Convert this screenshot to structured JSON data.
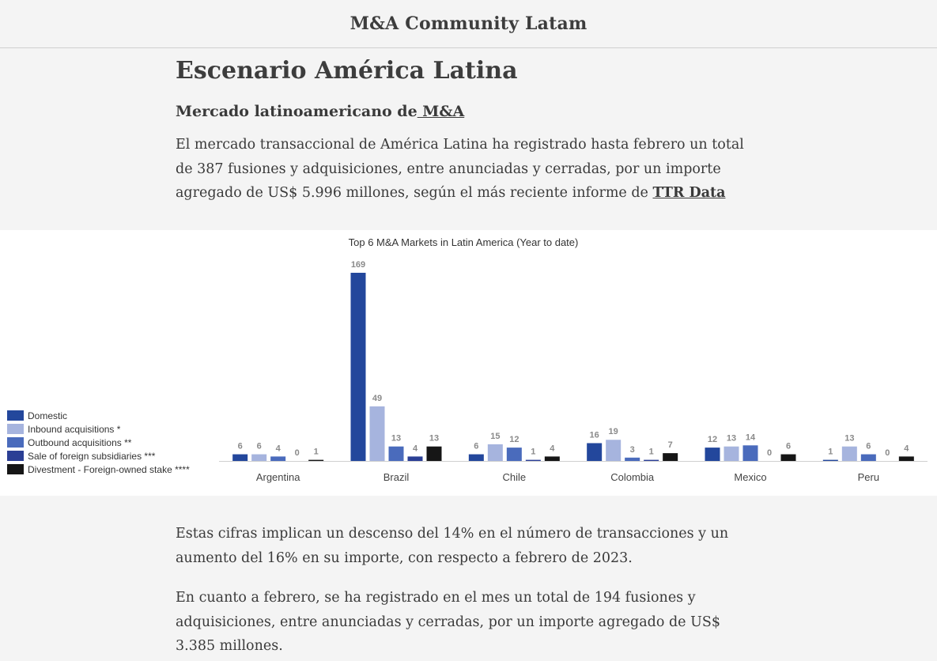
{
  "header": {
    "site_title": "M&A Community Latam"
  },
  "article": {
    "title": "Escenario América Latina",
    "subtitle_text": "Mercado latinoamericano de",
    "subtitle_link": " M&A",
    "intro_line1": "El mercado transaccional de América Latina ha registrado hasta febrero un total",
    "intro_line2": "de 387 fusiones y adquisiciones, entre anunciadas y cerradas, por un importe",
    "intro_line3": "agregado de US$ 5.996 millones, según el más reciente informe de ",
    "intro_link": "TTR Data",
    "para2_line1": "Estas cifras implican un descenso del 14% en el número de transacciones y un",
    "para2_line2": "aumento del 16% en su importe, con respecto a febrero de 2023.",
    "para3_line1": "En cuanto a febrero, se ha registrado en el mes un total de 194 fusiones y",
    "para3_line2": "adquisiciones, entre anunciadas y cerradas, por un importe agregado de US$",
    "para3_line3": "3.385 millones."
  },
  "chart_data": {
    "type": "bar",
    "title": "Top 6 M&A Markets in Latin America (Year to date)",
    "categories": [
      "Argentina",
      "Brazil",
      "Chile",
      "Colombia",
      "Mexico",
      "Peru"
    ],
    "series": [
      {
        "name": "Domestic",
        "color": "#23479c",
        "values": [
          6,
          169,
          6,
          16,
          12,
          1
        ]
      },
      {
        "name": "Inbound acquisitions *",
        "color": "#a6b4de",
        "values": [
          6,
          49,
          15,
          19,
          13,
          13
        ]
      },
      {
        "name": "Outbound acquisitions **",
        "color": "#4a6bbc",
        "values": [
          4,
          13,
          12,
          3,
          14,
          6
        ]
      },
      {
        "name": "Sale of foreign subsidiaries ***",
        "color": "#2b3f95",
        "values": [
          0,
          4,
          1,
          1,
          0,
          0
        ]
      },
      {
        "name": "Divestment - Foreign-owned stake ****",
        "color": "#161616",
        "values": [
          1,
          13,
          4,
          7,
          6,
          4
        ]
      }
    ],
    "ylim": [
      0,
      169
    ],
    "legend_position": "left",
    "grid": false
  }
}
